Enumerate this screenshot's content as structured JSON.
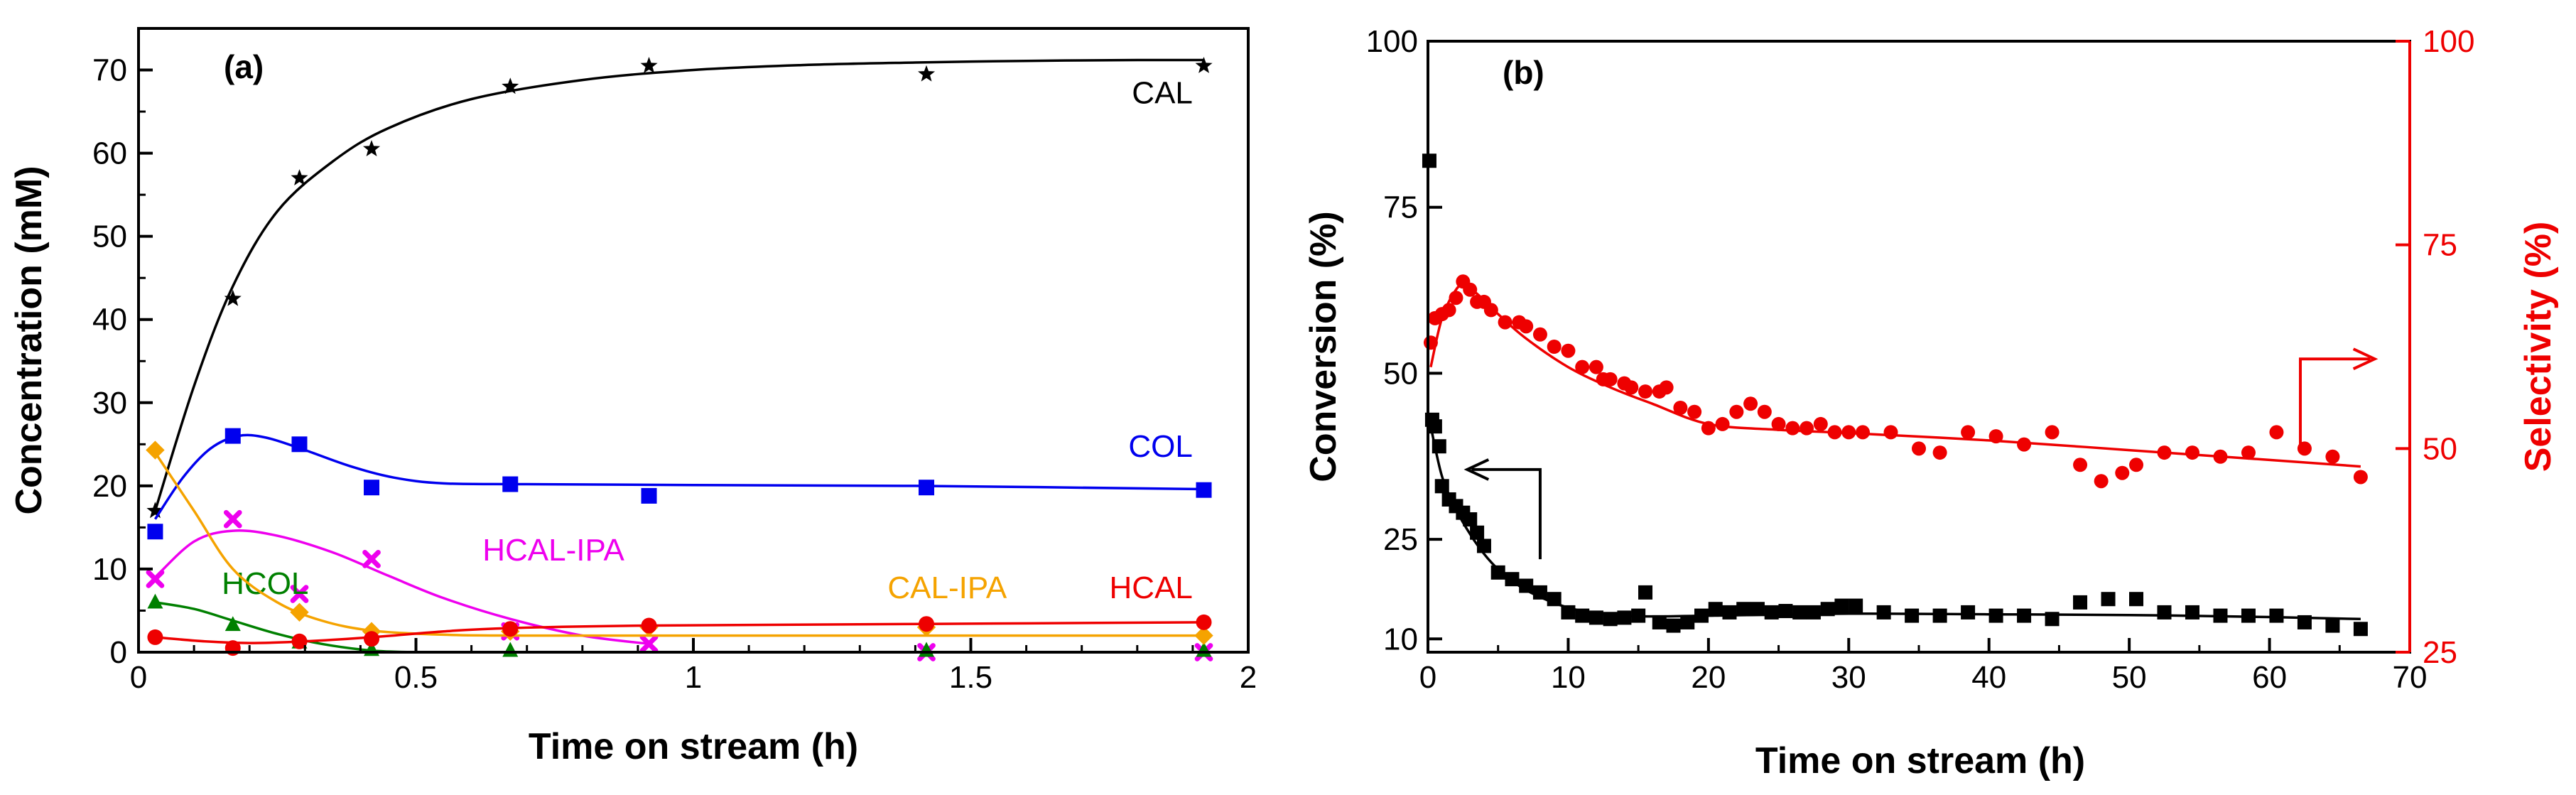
{
  "chart_data": [
    {
      "type": "scatter",
      "panel_label": "(a)",
      "xlabel": "Time on stream (h)",
      "ylabel": "Concentration (mM)",
      "xlim": [
        0,
        2
      ],
      "ylim": [
        0,
        75
      ],
      "xticks": [
        0,
        0.5,
        1,
        1.5,
        2
      ],
      "xtick_labels": [
        "0",
        "0.5",
        "1",
        "1.5",
        "2"
      ],
      "yticks": [
        0,
        10,
        20,
        30,
        40,
        50,
        60,
        70
      ],
      "ytick_labels": [
        "0",
        "10",
        "20",
        "30",
        "40",
        "50",
        "60",
        "70"
      ],
      "series": [
        {
          "name": "CAL",
          "color": "#000000",
          "marker": "star",
          "x": [
            0.03,
            0.17,
            0.29,
            0.42,
            0.67,
            0.92,
            1.42,
            1.92
          ],
          "y": [
            17,
            42.5,
            57,
            60.5,
            68,
            70.5,
            69.5,
            70.5
          ],
          "fit_x": [
            0.03,
            0.1,
            0.17,
            0.25,
            0.35,
            0.45,
            0.6,
            0.8,
            1.0,
            1.2,
            1.4,
            1.6,
            1.8,
            1.92
          ],
          "fit_y": [
            17,
            32,
            44,
            53,
            59,
            63,
            66.5,
            68.8,
            70,
            70.6,
            70.9,
            71.1,
            71.2,
            71.2
          ],
          "label_text": "CAL",
          "label_at": [
            1.9,
            66
          ]
        },
        {
          "name": "COL",
          "color": "#0000ee",
          "marker": "square",
          "x": [
            0.03,
            0.17,
            0.29,
            0.42,
            0.67,
            0.92,
            1.42,
            1.92
          ],
          "y": [
            14.5,
            26,
            25,
            19.8,
            20.2,
            18.8,
            19.8,
            19.5
          ],
          "fit_x": [
            0.03,
            0.08,
            0.13,
            0.18,
            0.23,
            0.3,
            0.38,
            0.46,
            0.55,
            0.7,
            1.0,
            1.4,
            1.92
          ],
          "fit_y": [
            16,
            21,
            24.5,
            26,
            25.8,
            24.3,
            22.4,
            21,
            20.3,
            20.2,
            20.1,
            20.0,
            19.6
          ],
          "label_text": "COL",
          "label_at": [
            1.9,
            23.5
          ]
        },
        {
          "name": "HCAL-IPA",
          "color": "#ee00ee",
          "marker": "x",
          "x": [
            0.03,
            0.17,
            0.29,
            0.42,
            0.67,
            0.92,
            1.42,
            1.92
          ],
          "y": [
            8.8,
            16,
            7,
            11.2,
            2.5,
            1,
            0,
            0
          ],
          "fit_x": [
            0.03,
            0.1,
            0.17,
            0.25,
            0.35,
            0.45,
            0.55,
            0.67,
            0.8,
            0.92
          ],
          "fit_y": [
            9,
            13.3,
            14.6,
            14,
            12,
            9.2,
            6.5,
            4,
            2,
            1
          ],
          "label_text": "HCAL-IPA",
          "label_at": [
            0.62,
            11
          ]
        },
        {
          "name": "HCOL",
          "color": "#008000",
          "marker": "triangle",
          "x": [
            0.03,
            0.17,
            0.29,
            0.42,
            0.67,
            1.42,
            1.92
          ],
          "y": [
            6,
            3.3,
            1.2,
            0.3,
            0.2,
            0.2,
            0.2
          ],
          "fit_x": [
            0.03,
            0.1,
            0.17,
            0.25,
            0.33,
            0.42,
            0.5
          ],
          "fit_y": [
            6,
            5.2,
            3.8,
            2.2,
            1,
            0.2,
            0
          ],
          "label_text": "HCOL",
          "label_at": [
            0.15,
            7
          ]
        },
        {
          "name": "CAL-IPA",
          "color": "#f5a300",
          "marker": "diamond",
          "x": [
            0.03,
            0.29,
            0.42,
            0.67,
            0.92,
            1.42,
            1.92
          ],
          "y": [
            24.3,
            4.8,
            2.5,
            2.5,
            3,
            3,
            2
          ],
          "fit_x": [
            0.03,
            0.1,
            0.17,
            0.25,
            0.33,
            0.42,
            0.55,
            0.7,
            1.0,
            1.5,
            1.92
          ],
          "fit_y": [
            24,
            17,
            10,
            6,
            3.8,
            2.6,
            2.1,
            2,
            2,
            2,
            2
          ],
          "label_text": "CAL-IPA",
          "label_at": [
            1.35,
            6.5
          ]
        },
        {
          "name": "HCAL",
          "color": "#ee0000",
          "marker": "circle",
          "x": [
            0.03,
            0.17,
            0.29,
            0.42,
            0.67,
            0.92,
            1.42,
            1.92
          ],
          "y": [
            1.8,
            0.5,
            1.3,
            1.6,
            2.8,
            3.2,
            3.4,
            3.6
          ],
          "fit_x": [
            0.03,
            0.12,
            0.2,
            0.3,
            0.42,
            0.55,
            0.67,
            0.92,
            1.42,
            1.92
          ],
          "fit_y": [
            1.8,
            1.3,
            1.1,
            1.3,
            1.8,
            2.5,
            2.9,
            3.2,
            3.4,
            3.6
          ],
          "label_text": "HCAL",
          "label_at": [
            1.9,
            6.5
          ]
        }
      ]
    },
    {
      "type": "scatter",
      "panel_label": "(b)",
      "xlabel": "Time on stream (h)",
      "ylabel": "Conversion (%)",
      "y2label": "Selectivity (%)",
      "xlim": [
        0,
        70
      ],
      "ylim": [
        8,
        100
      ],
      "y2lim": [
        25,
        100
      ],
      "xticks": [
        0,
        10,
        20,
        30,
        40,
        50,
        60,
        70
      ],
      "xtick_labels": [
        "0",
        "10",
        "20",
        "30",
        "40",
        "50",
        "60",
        "70"
      ],
      "yticks": [
        10,
        25,
        50,
        75,
        100
      ],
      "ytick_labels": [
        "10",
        "25",
        "50",
        "75",
        "100"
      ],
      "y2ticks": [
        25,
        50,
        75,
        100
      ],
      "y2tick_labels": [
        "25",
        "50",
        "75",
        "100"
      ],
      "series": [
        {
          "name": "Conversion",
          "color": "#000000",
          "marker": "square",
          "axis": "left",
          "x": [
            0.1,
            0.3,
            0.5,
            0.8,
            1.0,
            1.5,
            2.0,
            2.5,
            3.0,
            3.5,
            4.0,
            5.0,
            6.0,
            7.0,
            8.0,
            9.0,
            10.0,
            11.0,
            12.0,
            13.0,
            14.0,
            15.0,
            15.5,
            16.5,
            17.5,
            18.5,
            19.5,
            20.5,
            21.5,
            22.5,
            23.5,
            24.5,
            25.5,
            26.5,
            27.5,
            28.5,
            29.5,
            30.5,
            32.5,
            34.5,
            36.5,
            38.5,
            40.5,
            42.5,
            44.5,
            46.5,
            48.5,
            50.5,
            52.5,
            54.5,
            56.5,
            58.5,
            60.5,
            62.5,
            64.5,
            66.5
          ],
          "y": [
            82,
            43,
            42,
            39,
            33,
            31,
            30,
            29,
            28,
            26,
            24,
            20,
            19,
            18,
            17,
            16,
            14,
            13.5,
            13.2,
            13,
            13.2,
            13.5,
            17,
            12.5,
            12,
            12.5,
            13.5,
            14.5,
            14,
            14.5,
            14.5,
            14,
            14.2,
            14,
            14,
            14.5,
            15,
            15,
            14,
            13.5,
            13.5,
            14,
            13.5,
            13.5,
            13,
            15.5,
            16,
            16,
            14,
            14,
            13.5,
            13.5,
            13.5,
            12.5,
            12,
            11.5
          ],
          "fit_x": [
            0.2,
            1.0,
            2.0,
            3.0,
            4.0,
            5.0,
            6.5,
            8.0,
            10.0,
            12.0,
            15.0,
            20.0,
            30.0,
            40.0,
            50.0,
            60.0,
            66.5
          ],
          "fit_y": [
            42,
            34.5,
            29.5,
            25.8,
            22.8,
            20.5,
            18,
            16.3,
            14.7,
            13.9,
            13.4,
            13.5,
            13.8,
            13.7,
            13.6,
            13.3,
            13
          ]
        },
        {
          "name": "Selectivity",
          "color": "#ee0000",
          "marker": "circle",
          "axis": "right",
          "x": [
            0.2,
            0.5,
            1.0,
            1.5,
            2.0,
            2.5,
            3.0,
            3.5,
            4.0,
            4.5,
            5.5,
            6.5,
            7.0,
            8.0,
            9.0,
            10.0,
            11.0,
            12.0,
            12.5,
            13.0,
            14.0,
            14.5,
            15.5,
            16.5,
            17.0,
            18.0,
            19.0,
            20.0,
            21.0,
            22.0,
            23.0,
            24.0,
            25.0,
            26.0,
            27.0,
            28.0,
            29.0,
            30.0,
            31.0,
            33.0,
            35.0,
            36.5,
            38.5,
            40.5,
            42.5,
            44.5,
            46.5,
            48.0,
            49.5,
            50.5,
            52.5,
            54.5,
            56.5,
            58.5,
            60.5,
            62.5,
            64.5,
            66.5
          ],
          "y": [
            63,
            66,
            66.5,
            67,
            68.5,
            70.5,
            69.5,
            68,
            68,
            67,
            65.5,
            65.5,
            65,
            64,
            62.5,
            62,
            60,
            60,
            58.5,
            58.5,
            58,
            57.5,
            57,
            57,
            57.5,
            55,
            54.5,
            52.5,
            53,
            54.5,
            55.5,
            54.5,
            53,
            52.5,
            52.5,
            53,
            52,
            52,
            52,
            52,
            50,
            49.5,
            52,
            51.5,
            50.5,
            52,
            48,
            46,
            47,
            48,
            49.5,
            49.5,
            49,
            49.5,
            52,
            50,
            49,
            46.5
          ],
          "fit_x": [
            0.2,
            1.0,
            2.0,
            2.6,
            3.5,
            5.0,
            7.0,
            10.0,
            13.0,
            16.0,
            20.0,
            25.0,
            30.0,
            40.0,
            50.0,
            60.0,
            66.5
          ],
          "fit_y": [
            60,
            66,
            69.5,
            70,
            69,
            66.5,
            63.5,
            60,
            57.5,
            55.5,
            53,
            52.3,
            51.9,
            51,
            49.8,
            48.6,
            47.8
          ]
        }
      ],
      "arrows": [
        {
          "points_to": "left",
          "axis": "left"
        },
        {
          "points_to": "right",
          "axis": "right"
        }
      ]
    }
  ]
}
